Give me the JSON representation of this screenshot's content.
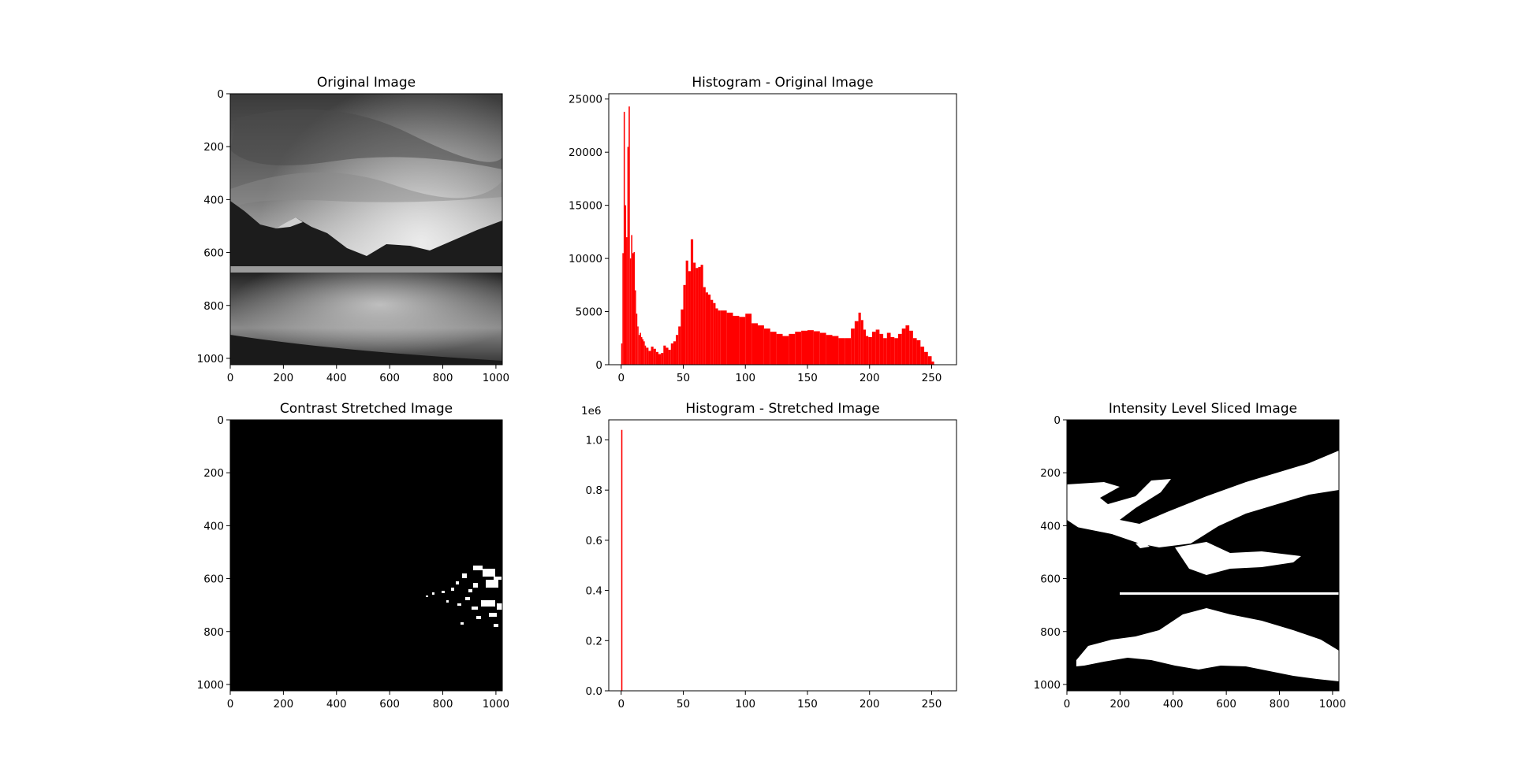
{
  "chart_data": [
    {
      "type": "image",
      "title": "Original Image",
      "xlim": [
        0,
        1024
      ],
      "ylim": [
        1024,
        0
      ],
      "xticks": [
        0,
        200,
        400,
        600,
        800,
        1000
      ],
      "yticks": [
        0,
        200,
        400,
        600,
        800,
        1000
      ],
      "content": "grayscale landscape: cloudy sky, mountains, lake reflection"
    },
    {
      "type": "bar",
      "title": "Histogram - Original Image",
      "color": "#ff0000",
      "xlim": [
        -10,
        270
      ],
      "ylim": [
        0,
        25500
      ],
      "xticks": [
        0,
        50,
        100,
        150,
        200,
        250
      ],
      "yticks": [
        0,
        5000,
        10000,
        15000,
        20000,
        25000
      ],
      "x": [
        0,
        1,
        2,
        3,
        4,
        5,
        6,
        7,
        8,
        9,
        10,
        11,
        12,
        13,
        14,
        15,
        16,
        17,
        18,
        19,
        20,
        22,
        24,
        26,
        28,
        30,
        32,
        34,
        36,
        38,
        40,
        42,
        44,
        46,
        48,
        50,
        52,
        54,
        56,
        58,
        60,
        62,
        64,
        66,
        68,
        70,
        72,
        74,
        76,
        78,
        80,
        85,
        90,
        95,
        100,
        105,
        110,
        115,
        120,
        125,
        130,
        135,
        140,
        145,
        150,
        155,
        160,
        165,
        170,
        175,
        180,
        185,
        188,
        191,
        193,
        195,
        197,
        199,
        202,
        205,
        208,
        211,
        214,
        217,
        220,
        223,
        226,
        229,
        232,
        235,
        238,
        241,
        244,
        247,
        250,
        252
      ],
      "values": [
        2000,
        10500,
        23800,
        15000,
        12000,
        20500,
        24300,
        10000,
        12200,
        10500,
        10600,
        7000,
        4800,
        3600,
        2800,
        3000,
        2600,
        2400,
        2200,
        1800,
        1600,
        1300,
        1700,
        1500,
        1200,
        1000,
        1100,
        1800,
        1600,
        1400,
        2000,
        2200,
        2800,
        3600,
        5200,
        7500,
        9800,
        8800,
        11800,
        9600,
        9100,
        9200,
        9400,
        7300,
        6800,
        6600,
        6100,
        5800,
        5300,
        5100,
        5100,
        4900,
        4600,
        4500,
        4800,
        3900,
        3700,
        3400,
        3100,
        2900,
        2700,
        2900,
        3100,
        3200,
        3250,
        3150,
        3000,
        2800,
        2700,
        2500,
        2500,
        3400,
        4100,
        4900,
        4200,
        3300,
        2700,
        2600,
        3100,
        3300,
        2900,
        2500,
        3000,
        2600,
        2500,
        2900,
        3400,
        3700,
        3200,
        2500,
        2300,
        1700,
        1200,
        800,
        300,
        0
      ]
    },
    {
      "type": "image",
      "title": "Contrast Stretched Image",
      "xlim": [
        0,
        1024
      ],
      "ylim": [
        1024,
        0
      ],
      "xticks": [
        0,
        200,
        400,
        600,
        800,
        1000
      ],
      "yticks": [
        0,
        200,
        400,
        600,
        800,
        1000
      ],
      "content": "mostly black image with sparse white specks near the lake line on the right"
    },
    {
      "type": "bar",
      "title": "Histogram - Stretched Image",
      "color": "#ff0000",
      "offset_text": "1e6",
      "xlim": [
        -10,
        270
      ],
      "ylim": [
        0,
        1.08
      ],
      "xticks": [
        0,
        50,
        100,
        150,
        200,
        250
      ],
      "yticks": [
        0.0,
        0.2,
        0.4,
        0.6,
        0.8,
        1.0
      ],
      "ytick_labels": [
        "0.0",
        "0.2",
        "0.4",
        "0.6",
        "0.8",
        "1.0"
      ],
      "x": [
        0,
        255
      ],
      "values": [
        1.04,
        0.002
      ]
    },
    {
      "type": "image",
      "title": "Intensity Level Sliced Image",
      "xlim": [
        0,
        1024
      ],
      "ylim": [
        1024,
        0
      ],
      "xticks": [
        0,
        200,
        400,
        600,
        800,
        1000
      ],
      "yticks": [
        0,
        200,
        400,
        600,
        800,
        1000
      ],
      "content": "binary black and white image: white bands of sky, mountains and reflection"
    }
  ]
}
